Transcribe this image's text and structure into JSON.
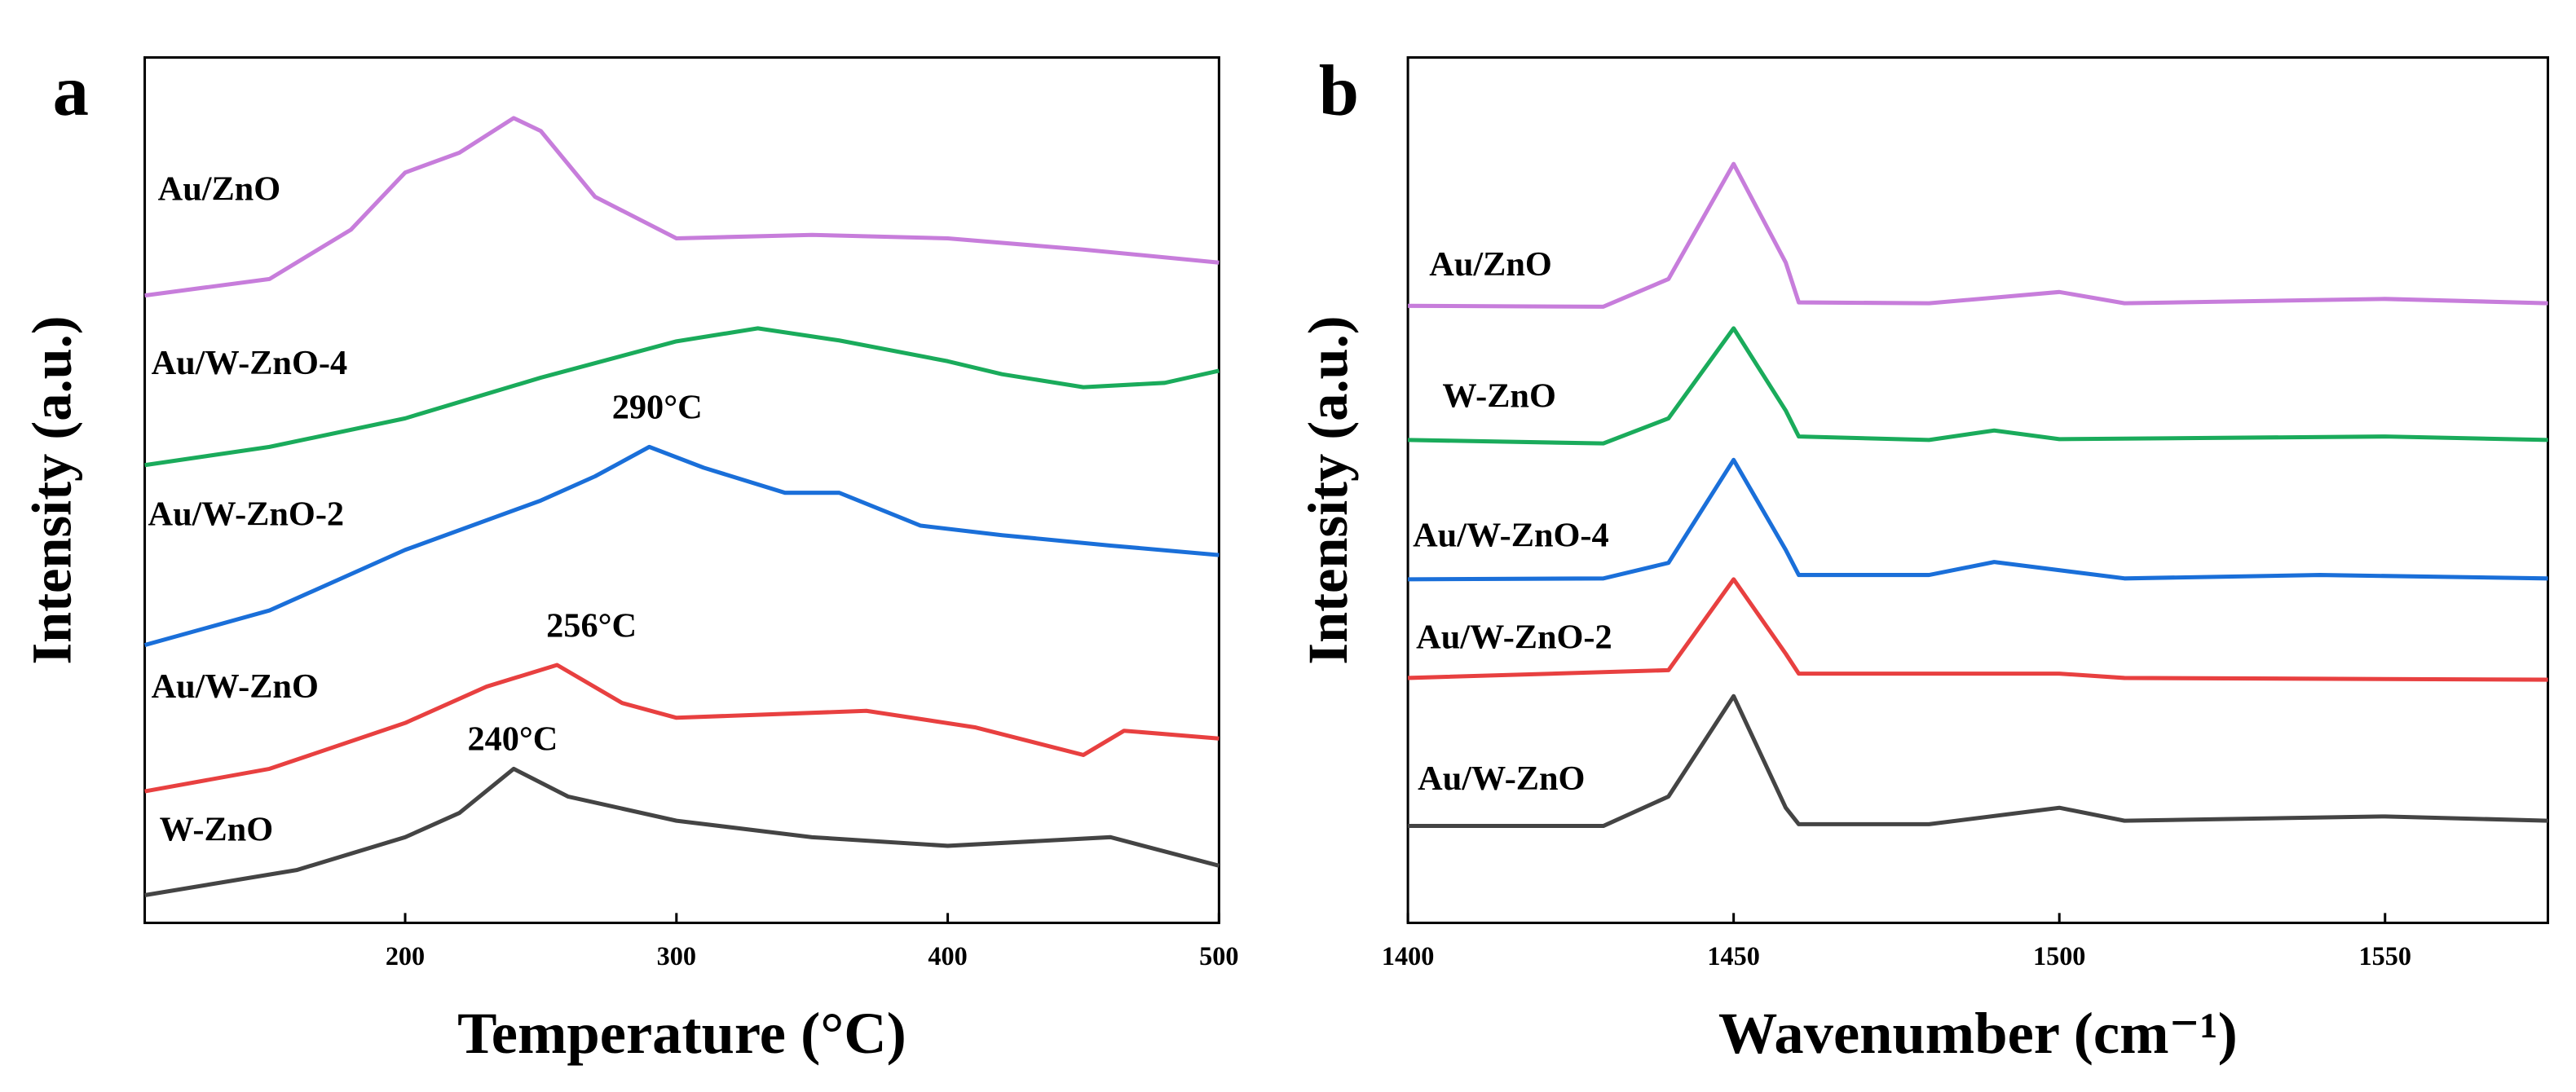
{
  "chart_data": [
    {
      "type": "line",
      "panel_label": "a",
      "xlabel": "Temperature (°C)",
      "ylabel": "Intensity (a.u.)",
      "xlim": [
        104,
        500
      ],
      "xticks": [
        200,
        300,
        400,
        500
      ],
      "ylim": [
        0,
        100
      ],
      "series": [
        {
          "name": "Au/ZnO",
          "color": "#c77ddb",
          "x": [
            104,
            150,
            180,
            200,
            220,
            240,
            250,
            270,
            300,
            350,
            400,
            450,
            500
          ],
          "values": [
            72.5,
            74.4,
            80.1,
            86.7,
            89.0,
            93.0,
            91.5,
            83.9,
            79.1,
            79.5,
            79.1,
            77.8,
            76.3
          ]
        },
        {
          "name": "Au/W-ZnO-4",
          "color": "#1aab5b",
          "x": [
            104,
            150,
            200,
            250,
            300,
            330,
            360,
            400,
            420,
            450,
            480,
            500
          ],
          "values": [
            52.9,
            55.0,
            58.3,
            63.0,
            67.2,
            68.7,
            67.3,
            64.9,
            63.4,
            61.9,
            62.4,
            63.8
          ]
        },
        {
          "name": "Au/W-ZnO-2",
          "color": "#1a6fd9",
          "x": [
            104,
            150,
            200,
            250,
            270,
            290,
            310,
            340,
            360,
            390,
            420,
            460,
            500
          ],
          "values": [
            32.1,
            36.1,
            43.1,
            48.8,
            51.6,
            55.0,
            52.6,
            49.7,
            49.7,
            45.9,
            44.8,
            43.6,
            42.5
          ]
        },
        {
          "name": "Au/W-ZnO",
          "color": "#e84040",
          "x": [
            104,
            150,
            200,
            230,
            256,
            280,
            300,
            370,
            410,
            450,
            465,
            500
          ],
          "values": [
            15.2,
            17.8,
            23.1,
            27.3,
            29.8,
            25.4,
            23.7,
            24.5,
            22.6,
            19.4,
            22.2,
            21.3
          ]
        },
        {
          "name": "W-ZnO",
          "color": "#444444",
          "x": [
            104,
            160,
            200,
            220,
            240,
            260,
            300,
            350,
            400,
            460,
            500
          ],
          "values": [
            3.2,
            6.1,
            9.9,
            12.7,
            17.8,
            14.6,
            11.8,
            9.9,
            8.9,
            9.9,
            6.6
          ]
        }
      ],
      "annotations": [
        "290°C",
        "256°C",
        "240°C"
      ]
    },
    {
      "type": "line",
      "panel_label": "b",
      "xlabel": "Wavenumber (cm⁻¹)",
      "ylabel": "Intensity (a.u.)",
      "xlim": [
        1400,
        1575
      ],
      "xticks": [
        1400,
        1450,
        1500,
        1550
      ],
      "ylim": [
        0,
        100
      ],
      "series": [
        {
          "name": "Au/ZnO",
          "color": "#c77ddb",
          "x": [
            1400,
            1430,
            1440,
            1450,
            1458,
            1460,
            1480,
            1500,
            1510,
            1550,
            1575
          ],
          "values": [
            71.3,
            71.2,
            74.4,
            87.7,
            76.3,
            71.7,
            71.6,
            72.9,
            71.6,
            72.1,
            71.6
          ]
        },
        {
          "name": "W-ZnO",
          "color": "#1aab5b",
          "x": [
            1400,
            1430,
            1440,
            1450,
            1458,
            1460,
            1480,
            1490,
            1500,
            1550,
            1575
          ],
          "values": [
            55.8,
            55.4,
            58.3,
            68.7,
            59.2,
            56.2,
            55.8,
            56.9,
            55.9,
            56.2,
            55.8
          ]
        },
        {
          "name": "Au/W-ZnO-4",
          "color": "#1a6fd9",
          "x": [
            1400,
            1430,
            1440,
            1450,
            1458,
            1460,
            1480,
            1490,
            1510,
            1540,
            1575
          ],
          "values": [
            39.7,
            39.8,
            41.6,
            53.5,
            43.1,
            40.2,
            40.2,
            41.7,
            39.8,
            40.2,
            39.8
          ]
        },
        {
          "name": "Au/W-ZnO-2",
          "color": "#e84040",
          "x": [
            1400,
            1440,
            1450,
            1458,
            1460,
            1500,
            1510,
            1575
          ],
          "values": [
            28.3,
            29.2,
            39.7,
            31.1,
            28.8,
            28.8,
            28.3,
            28.1
          ]
        },
        {
          "name": "Au/W-ZnO",
          "color": "#444444",
          "x": [
            1400,
            1430,
            1440,
            1450,
            1458,
            1460,
            1480,
            1500,
            1510,
            1550,
            1575
          ],
          "values": [
            11.2,
            11.2,
            14.6,
            26.2,
            13.3,
            11.4,
            11.4,
            13.3,
            11.8,
            12.3,
            11.8
          ]
        }
      ]
    }
  ]
}
